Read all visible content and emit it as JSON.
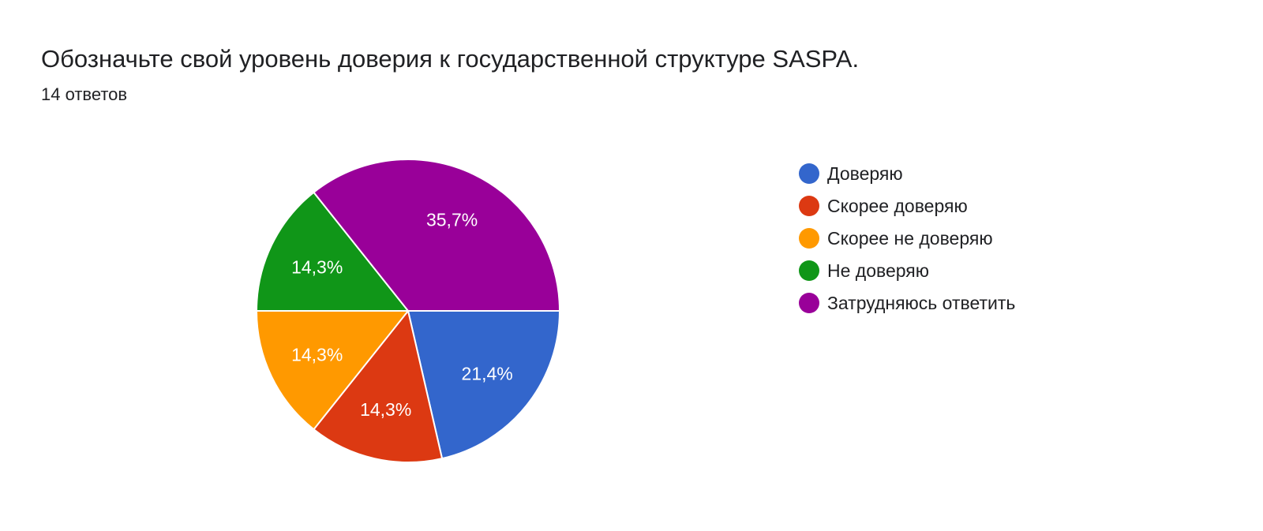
{
  "header": {
    "title": "Обозначьте свой уровень доверия к государственной структуре  SASPA.",
    "responses": "14 ответов"
  },
  "chart_data": {
    "type": "pie",
    "categories": [
      "Доверяю",
      "Скорее доверяю",
      "Скорее не доверяю",
      "Не доверяю",
      "Затрудняюсь ответить"
    ],
    "values": [
      21.4,
      14.3,
      14.3,
      14.3,
      35.7
    ],
    "labels": [
      "21,4%",
      "14,3%",
      "14,3%",
      "14,3%",
      "35,7%"
    ],
    "colors": [
      "#3366cc",
      "#dc3912",
      "#ff9900",
      "#109618",
      "#990099"
    ],
    "unit": "%",
    "start_angle": "3 o'clock, clockwise",
    "legend_position": "right"
  }
}
